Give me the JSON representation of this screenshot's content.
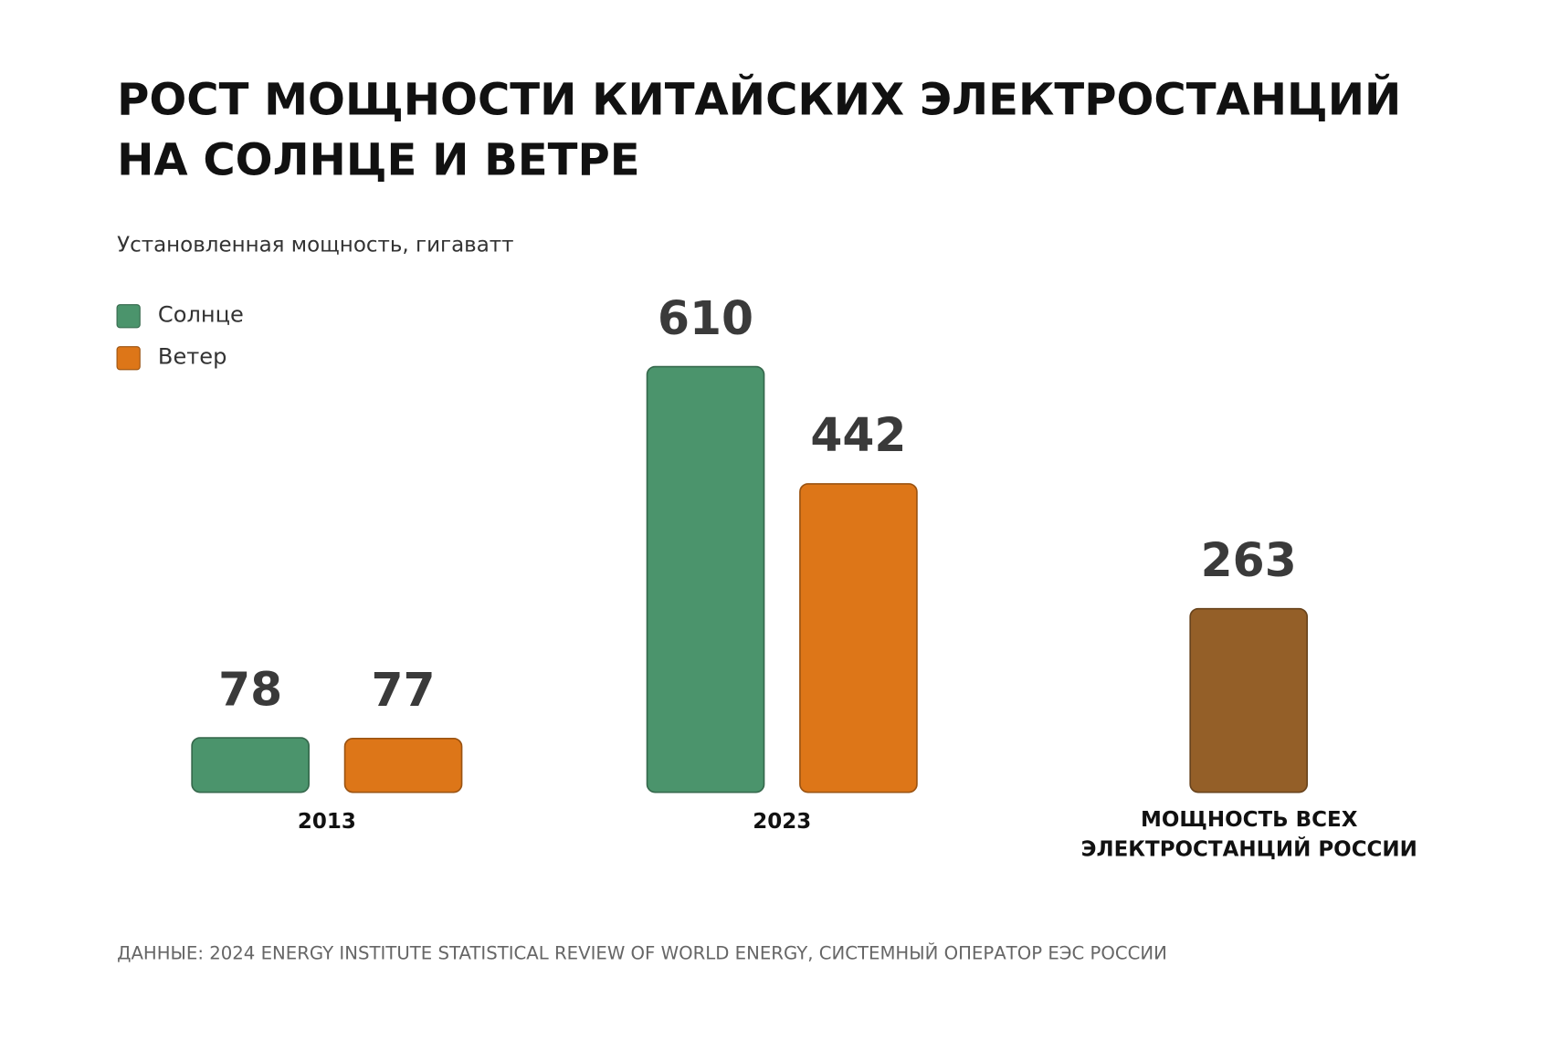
{
  "chart_data": {
    "type": "bar",
    "title": [
      "РОСТ МОЩНОСТИ КИТАЙСКИХ ЭЛЕКТРОСТАНЦИЙ",
      "НА СОЛНЦЕ И ВЕТРЕ"
    ],
    "subtitle": "Установленная мощность, гигаватт",
    "categories": [
      "2013",
      "2023"
    ],
    "series": [
      {
        "name": "Солнце",
        "color": "#4b946c",
        "values": [
          78,
          610
        ]
      },
      {
        "name": "Ветер",
        "color": "#dd7618",
        "values": [
          77,
          442
        ]
      }
    ],
    "reference": {
      "label": [
        "МОЩНОСТЬ ВСЕХ",
        "ЭЛЕКТРОСТАНЦИЙ РОССИИ"
      ],
      "value": 263,
      "color": "#945f28"
    },
    "source": "ДАННЫЕ: 2024 ENERGY INSTITUTE STATISTICAL REVIEW OF WORLD ENERGY, СИСТЕМНЫЙ ОПЕРАТОР ЕЭС РОССИИ"
  }
}
